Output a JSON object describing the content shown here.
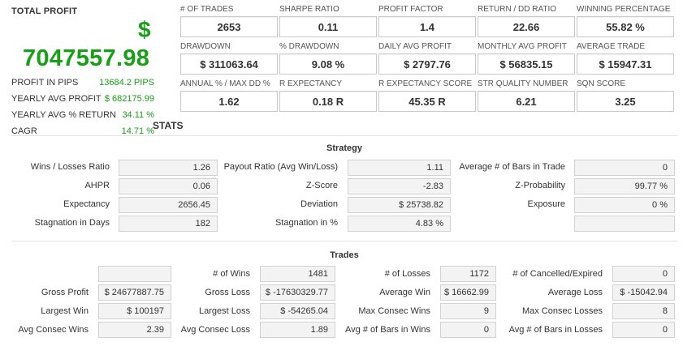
{
  "summary": {
    "total_profit_label": "TOTAL PROFIT",
    "currency_symbol": "$",
    "total_profit_value": "7047557.98",
    "rows": [
      {
        "label": "PROFIT IN PIPS",
        "value": "13684.2 PIPS"
      },
      {
        "label": "YEARLY AVG PROFIT",
        "value": "$ 682175.99"
      },
      {
        "label": "YEARLY AVG % RETURN",
        "value": "34.11 %"
      },
      {
        "label": "CAGR",
        "value": "14.71 %"
      }
    ]
  },
  "metrics": [
    {
      "label": "# OF TRADES",
      "value": "2653"
    },
    {
      "label": "SHARPE RATIO",
      "value": "0.11"
    },
    {
      "label": "PROFIT FACTOR",
      "value": "1.4"
    },
    {
      "label": "RETURN / DD RATIO",
      "value": "22.66"
    },
    {
      "label": "WINNING PERCENTAGE",
      "value": "55.82 %"
    },
    {
      "label": "DRAWDOWN",
      "value": "$ 311063.64"
    },
    {
      "label": "% DRAWDOWN",
      "value": "9.08 %"
    },
    {
      "label": "DAILY AVG PROFIT",
      "value": "$ 2797.76"
    },
    {
      "label": "MONTHLY AVG PROFIT",
      "value": "$ 56835.15"
    },
    {
      "label": "AVERAGE TRADE",
      "value": "$ 15947.31"
    },
    {
      "label": "ANNUAL % / MAX DD %",
      "value": "1.62"
    },
    {
      "label": "R EXPECTANCY",
      "value": "0.18 R"
    },
    {
      "label": "R EXPECTANCY SCORE",
      "value": "45.35 R"
    },
    {
      "label": "STR QUALITY NUMBER",
      "value": "6.21"
    },
    {
      "label": "SQN SCORE",
      "value": "3.25"
    }
  ],
  "stats_title": "STATS",
  "strategy": {
    "title": "Strategy",
    "rows": [
      [
        {
          "label": "Wins / Losses Ratio",
          "value": "1.26"
        },
        {
          "label": "Payout Ratio (Avg Win/Loss)",
          "value": "1.11"
        },
        {
          "label": "Average # of Bars in Trade",
          "value": "0"
        }
      ],
      [
        {
          "label": "AHPR",
          "value": "0.06"
        },
        {
          "label": "Z-Score",
          "value": "-2.83"
        },
        {
          "label": "Z-Probability",
          "value": "99.77 %"
        }
      ],
      [
        {
          "label": "Expectancy",
          "value": "2656.45"
        },
        {
          "label": "Deviation",
          "value": "$ 25738.82"
        },
        {
          "label": "Exposure",
          "value": "0 %"
        }
      ],
      [
        {
          "label": "Stagnation in Days",
          "value": "182"
        },
        {
          "label": "Stagnation in %",
          "value": "4.83 %"
        },
        {
          "label": "",
          "value": ""
        }
      ]
    ]
  },
  "trades": {
    "title": "Trades",
    "rows": [
      [
        {
          "label": "",
          "value": ""
        },
        {
          "label": "# of Wins",
          "value": "1481"
        },
        {
          "label": "# of Losses",
          "value": "1172"
        },
        {
          "label": "# of Cancelled/Expired",
          "value": "0"
        }
      ],
      [
        {
          "label": "Gross Profit",
          "value": "$ 24677887.75"
        },
        {
          "label": "Gross Loss",
          "value": "$ -17630329.77"
        },
        {
          "label": "Average Win",
          "value": "$ 16662.99"
        },
        {
          "label": "Average Loss",
          "value": "$ -15042.94"
        }
      ],
      [
        {
          "label": "Largest Win",
          "value": "$ 100197"
        },
        {
          "label": "Largest Loss",
          "value": "$ -54265.04"
        },
        {
          "label": "Max Consec Wins",
          "value": "9"
        },
        {
          "label": "Max Consec Losses",
          "value": "8"
        }
      ],
      [
        {
          "label": "Avg Consec Wins",
          "value": "2.39"
        },
        {
          "label": "Avg Consec Loss",
          "value": "1.89"
        },
        {
          "label": "Avg # of Bars in Wins",
          "value": "0"
        },
        {
          "label": "Avg # of Bars in Losses",
          "value": "0"
        }
      ]
    ]
  },
  "colors": {
    "profit_green": "#16a016",
    "value_bg": "#f3f3f3",
    "border": "#d2d2d2"
  }
}
